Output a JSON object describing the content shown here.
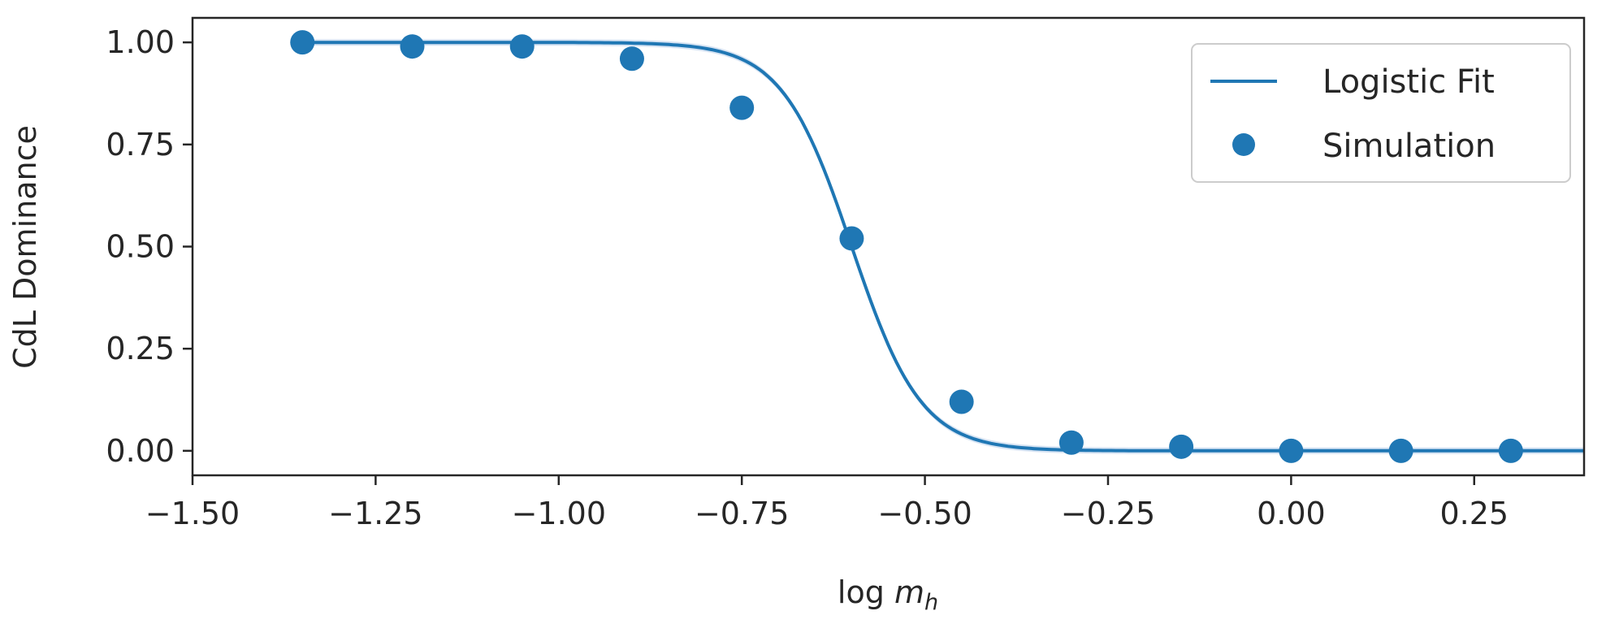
{
  "chart_data": {
    "type": "line+scatter",
    "xlabel_base": "log",
    "xlabel_var": "m",
    "xlabel_sub": "h",
    "ylabel": "CdL Dominance",
    "xlim": [
      -1.5,
      0.4
    ],
    "ylim": [
      -0.06,
      1.06
    ],
    "xticks": [
      -1.5,
      -1.25,
      -1.0,
      -0.75,
      -0.5,
      -0.25,
      0.0,
      0.25
    ],
    "xtick_labels": [
      "−1.50",
      "−1.25",
      "−1.00",
      "−0.75",
      "−0.50",
      "−0.25",
      "0.00",
      "0.25"
    ],
    "yticks": [
      0.0,
      0.25,
      0.5,
      0.75,
      1.0
    ],
    "ytick_labels": [
      "0.00",
      "0.25",
      "0.50",
      "0.75",
      "1.00"
    ],
    "grid": false,
    "legend_position": "top-right",
    "colors": {
      "series": "#1f77b4",
      "axis": "#262626",
      "band": "#aec7e8"
    },
    "fit": {
      "name": "Logistic Fit",
      "midpoint": -0.6,
      "steepness": 21
    },
    "series": [
      {
        "name": "Simulation",
        "x": [
          -1.35,
          -1.2,
          -1.05,
          -0.9,
          -0.75,
          -0.6,
          -0.45,
          -0.3,
          -0.15,
          0.0,
          0.15,
          0.3
        ],
        "y": [
          1.0,
          0.99,
          0.99,
          0.96,
          0.84,
          0.52,
          0.12,
          0.02,
          0.01,
          0.0,
          0.0,
          0.0
        ]
      }
    ]
  }
}
